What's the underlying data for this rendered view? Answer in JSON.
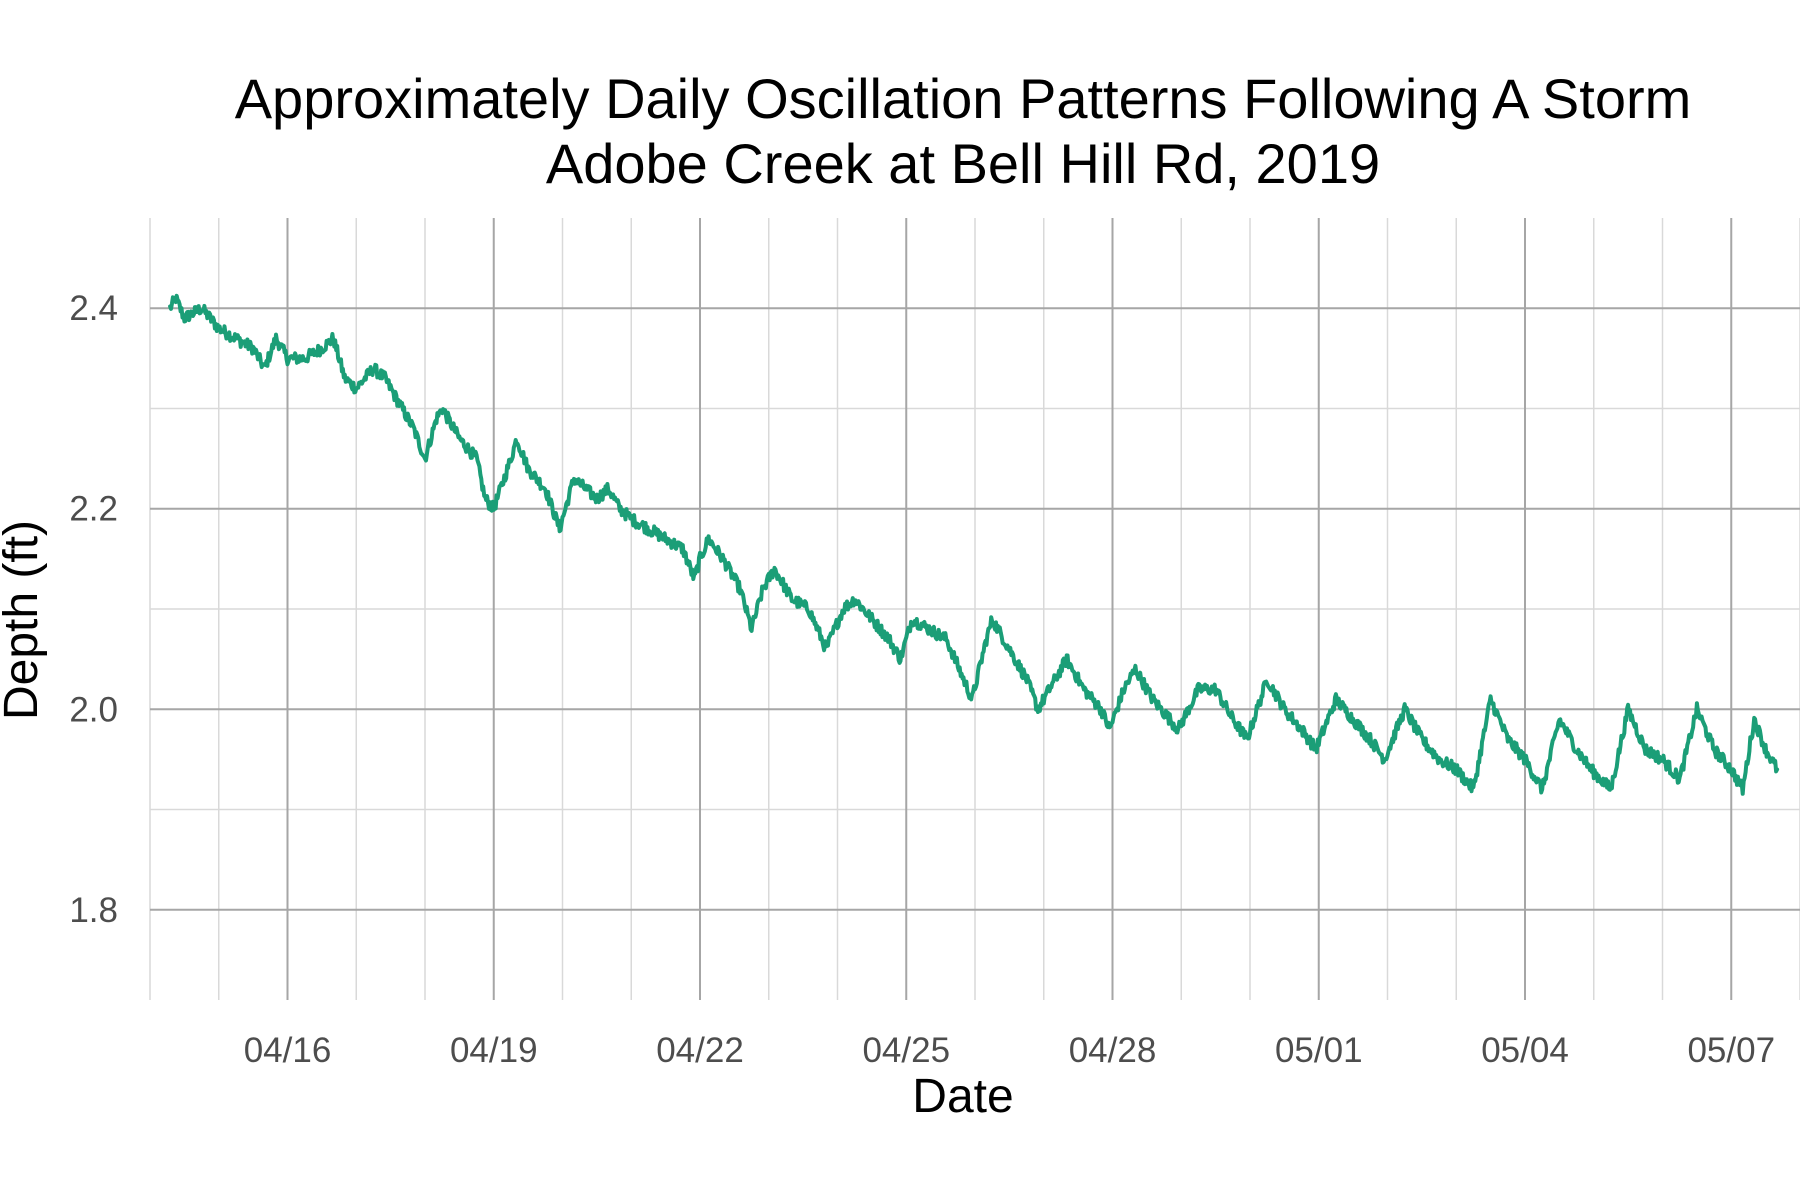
{
  "chart_data": {
    "type": "line",
    "title": "Approximately Daily Oscillation Patterns Following A Storm",
    "subtitle": "Adobe Creek at Bell Hill Rd, 2019",
    "xlabel": "Date",
    "ylabel": "Depth (ft)",
    "x_axis_kind": "date",
    "xlim": [
      "2019-04-14T00:00",
      "2019-05-08T00:00"
    ],
    "ylim": [
      1.71,
      2.49
    ],
    "x_ticks": [
      {
        "date": "2019-04-16",
        "label": "04/16"
      },
      {
        "date": "2019-04-19",
        "label": "04/19"
      },
      {
        "date": "2019-04-22",
        "label": "04/22"
      },
      {
        "date": "2019-04-25",
        "label": "04/25"
      },
      {
        "date": "2019-04-28",
        "label": "04/28"
      },
      {
        "date": "2019-05-01",
        "label": "05/01"
      },
      {
        "date": "2019-05-04",
        "label": "05/04"
      },
      {
        "date": "2019-05-07",
        "label": "05/07"
      }
    ],
    "y_ticks": [
      {
        "value": 1.8,
        "label": "1.8"
      },
      {
        "value": 2.0,
        "label": "2.0"
      },
      {
        "value": 2.2,
        "label": "2.2"
      },
      {
        "value": 2.4,
        "label": "2.4"
      }
    ],
    "grid": true,
    "legend": "none",
    "series": [
      {
        "color": "#1b9e77",
        "points": [
          [
            "2019-04-14T07:00",
            2.4
          ],
          [
            "2019-04-14T09:00",
            2.41
          ],
          [
            "2019-04-14T12:00",
            2.39
          ],
          [
            "2019-04-14T18:00",
            2.4
          ],
          [
            "2019-04-15T00:00",
            2.38
          ],
          [
            "2019-04-15T06:00",
            2.37
          ],
          [
            "2019-04-15T12:00",
            2.36
          ],
          [
            "2019-04-15T16:00",
            2.34
          ],
          [
            "2019-04-15T20:00",
            2.37
          ],
          [
            "2019-04-16T00:00",
            2.35
          ],
          [
            "2019-04-16T06:00",
            2.35
          ],
          [
            "2019-04-16T12:00",
            2.36
          ],
          [
            "2019-04-16T16:00",
            2.37
          ],
          [
            "2019-04-16T20:00",
            2.33
          ],
          [
            "2019-04-17T00:00",
            2.32
          ],
          [
            "2019-04-17T06:00",
            2.34
          ],
          [
            "2019-04-17T10:00",
            2.33
          ],
          [
            "2019-04-17T16:00",
            2.3
          ],
          [
            "2019-04-17T20:00",
            2.28
          ],
          [
            "2019-04-18T00:00",
            2.25
          ],
          [
            "2019-04-18T04:00",
            2.29
          ],
          [
            "2019-04-18T06:00",
            2.3
          ],
          [
            "2019-04-18T12:00",
            2.27
          ],
          [
            "2019-04-18T18:00",
            2.25
          ],
          [
            "2019-04-18T21:00",
            2.21
          ],
          [
            "2019-04-19T00:00",
            2.2
          ],
          [
            "2019-04-19T06:00",
            2.25
          ],
          [
            "2019-04-19T08:00",
            2.27
          ],
          [
            "2019-04-19T12:00",
            2.24
          ],
          [
            "2019-04-19T18:00",
            2.22
          ],
          [
            "2019-04-19T23:00",
            2.18
          ],
          [
            "2019-04-20T04:00",
            2.23
          ],
          [
            "2019-04-20T08:00",
            2.22
          ],
          [
            "2019-04-20T12:00",
            2.21
          ],
          [
            "2019-04-20T16:00",
            2.22
          ],
          [
            "2019-04-20T20:00",
            2.2
          ],
          [
            "2019-04-21T00:00",
            2.19
          ],
          [
            "2019-04-21T06:00",
            2.18
          ],
          [
            "2019-04-21T12:00",
            2.17
          ],
          [
            "2019-04-21T18:00",
            2.16
          ],
          [
            "2019-04-21T22:00",
            2.13
          ],
          [
            "2019-04-22T00:00",
            2.15
          ],
          [
            "2019-04-22T03:00",
            2.17
          ],
          [
            "2019-04-22T08:00",
            2.15
          ],
          [
            "2019-04-22T14:00",
            2.12
          ],
          [
            "2019-04-22T18:00",
            2.08
          ],
          [
            "2019-04-22T22:00",
            2.12
          ],
          [
            "2019-04-23T02:00",
            2.14
          ],
          [
            "2019-04-23T08:00",
            2.11
          ],
          [
            "2019-04-23T14:00",
            2.1
          ],
          [
            "2019-04-23T20:00",
            2.06
          ],
          [
            "2019-04-24T02:00",
            2.1
          ],
          [
            "2019-04-24T06:00",
            2.11
          ],
          [
            "2019-04-24T12:00",
            2.09
          ],
          [
            "2019-04-24T18:00",
            2.07
          ],
          [
            "2019-04-24T22:00",
            2.05
          ],
          [
            "2019-04-25T02:00",
            2.09
          ],
          [
            "2019-04-25T08:00",
            2.08
          ],
          [
            "2019-04-25T14:00",
            2.07
          ],
          [
            "2019-04-25T20:00",
            2.03
          ],
          [
            "2019-04-25T23:00",
            2.01
          ],
          [
            "2019-04-26T04:00",
            2.07
          ],
          [
            "2019-04-26T06:00",
            2.09
          ],
          [
            "2019-04-26T12:00",
            2.06
          ],
          [
            "2019-04-26T18:00",
            2.03
          ],
          [
            "2019-04-26T22:00",
            2.0
          ],
          [
            "2019-04-27T04:00",
            2.03
          ],
          [
            "2019-04-27T08:00",
            2.05
          ],
          [
            "2019-04-27T14:00",
            2.02
          ],
          [
            "2019-04-27T20:00",
            2.0
          ],
          [
            "2019-04-27T23:00",
            1.98
          ],
          [
            "2019-04-28T04:00",
            2.02
          ],
          [
            "2019-04-28T08:00",
            2.04
          ],
          [
            "2019-04-28T14:00",
            2.01
          ],
          [
            "2019-04-28T20:00",
            1.99
          ],
          [
            "2019-04-28T23:00",
            1.98
          ],
          [
            "2019-04-29T06:00",
            2.02
          ],
          [
            "2019-04-29T12:00",
            2.02
          ],
          [
            "2019-04-29T18:00",
            1.99
          ],
          [
            "2019-04-29T23:00",
            1.97
          ],
          [
            "2019-04-30T06:00",
            2.03
          ],
          [
            "2019-04-30T12:00",
            2.0
          ],
          [
            "2019-04-30T18:00",
            1.98
          ],
          [
            "2019-04-30T23:00",
            1.96
          ],
          [
            "2019-05-01T06:00",
            2.01
          ],
          [
            "2019-05-01T12:00",
            1.99
          ],
          [
            "2019-05-01T18:00",
            1.97
          ],
          [
            "2019-05-01T23:00",
            1.95
          ],
          [
            "2019-05-02T06:00",
            2.0
          ],
          [
            "2019-05-02T12:00",
            1.97
          ],
          [
            "2019-05-02T18:00",
            1.95
          ],
          [
            "2019-05-03T00:00",
            1.94
          ],
          [
            "2019-05-03T06:00",
            1.92
          ],
          [
            "2019-05-03T12:00",
            2.01
          ],
          [
            "2019-05-03T18:00",
            1.97
          ],
          [
            "2019-05-04T00:00",
            1.95
          ],
          [
            "2019-05-04T06:00",
            1.92
          ],
          [
            "2019-05-04T12:00",
            1.99
          ],
          [
            "2019-05-04T18:00",
            1.96
          ],
          [
            "2019-05-04T23:00",
            1.94
          ],
          [
            "2019-05-05T06:00",
            1.92
          ],
          [
            "2019-05-05T12:00",
            2.0
          ],
          [
            "2019-05-05T18:00",
            1.96
          ],
          [
            "2019-05-06T00:00",
            1.95
          ],
          [
            "2019-05-06T06:00",
            1.93
          ],
          [
            "2019-05-06T12:00",
            2.0
          ],
          [
            "2019-05-06T18:00",
            1.96
          ],
          [
            "2019-05-07T00:00",
            1.94
          ],
          [
            "2019-05-07T04:00",
            1.92
          ],
          [
            "2019-05-07T08:00",
            1.99
          ],
          [
            "2019-05-07T12:00",
            1.96
          ],
          [
            "2019-05-07T16:00",
            1.94
          ]
        ]
      }
    ]
  }
}
